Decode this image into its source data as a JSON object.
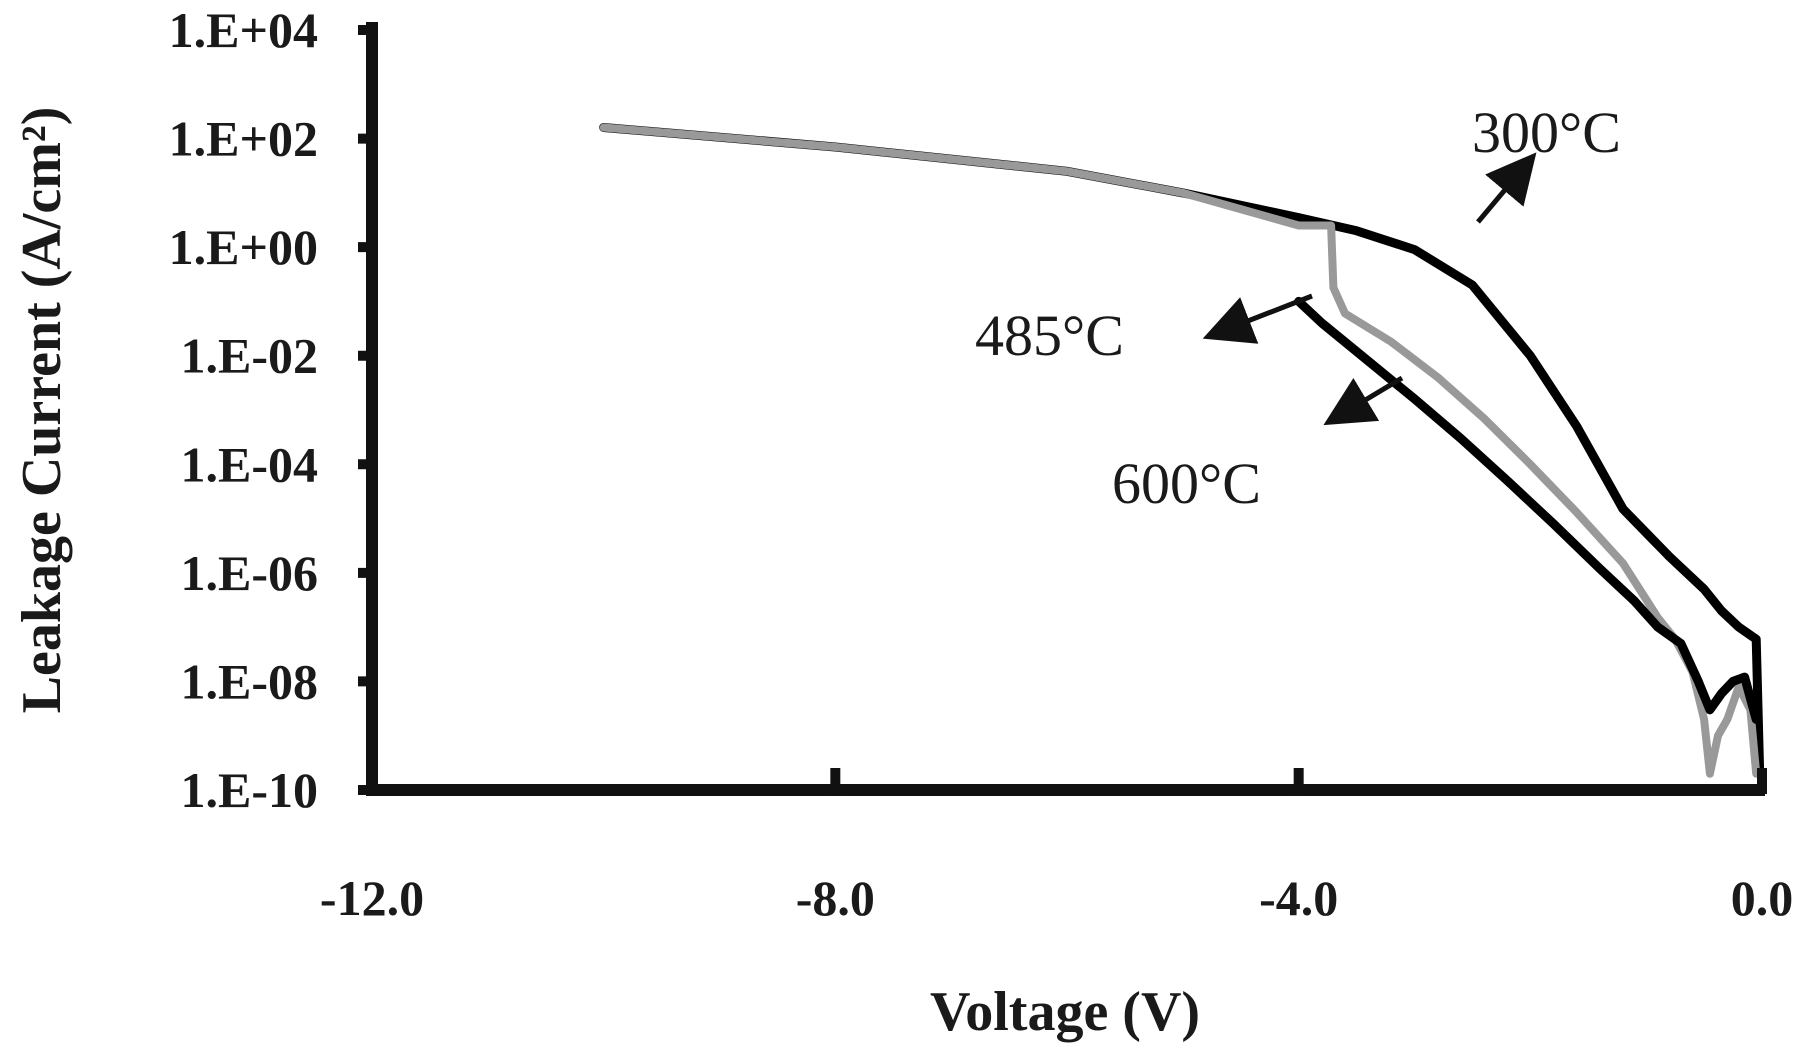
{
  "chart_data": {
    "type": "line",
    "title": "",
    "xlabel": "Voltage (V)",
    "ylabel": "Leakage Current (A/cm²)",
    "y_scale": "log",
    "xlim": [
      -12.0,
      0.0
    ],
    "ylim": [
      1e-10,
      10000.0
    ],
    "x_ticks": [
      {
        "value": -12.0,
        "label": "-12.0"
      },
      {
        "value": -8.0,
        "label": "-8.0"
      },
      {
        "value": -4.0,
        "label": "-4.0"
      },
      {
        "value": 0.0,
        "label": "0.0"
      }
    ],
    "y_ticks": [
      {
        "value": 10000.0,
        "label": "1.E+04"
      },
      {
        "value": 100.0,
        "label": "1.E+02"
      },
      {
        "value": 1.0,
        "label": "1.E+00"
      },
      {
        "value": 0.01,
        "label": "1.E-02"
      },
      {
        "value": 0.0001,
        "label": "1.E-04"
      },
      {
        "value": 1e-06,
        "label": "1.E-06"
      },
      {
        "value": 1e-08,
        "label": "1.E-08"
      },
      {
        "value": 1e-10,
        "label": "1.E-10"
      }
    ],
    "grid": false,
    "legend": "none",
    "series": [
      {
        "annotation": "300°C",
        "color": "#000000",
        "x": [
          -10.0,
          -8.0,
          -6.0,
          -5.0,
          -4.0,
          -3.5,
          -3.0,
          -2.5,
          -2.0,
          -1.6,
          -1.2,
          -0.8,
          -0.5,
          -0.35,
          -0.2,
          -0.05,
          -0.02
        ],
        "y": [
          160,
          70,
          25,
          10,
          3.5,
          2.0,
          0.9,
          0.2,
          0.01,
          0.0005,
          1.5e-05,
          2e-06,
          5e-07,
          2e-07,
          1e-07,
          6e-08,
          2e-10
        ]
      },
      {
        "annotation": "485°C",
        "color": "#999999",
        "x": [
          -10.0,
          -8.0,
          -6.0,
          -5.0,
          -4.0,
          -3.72,
          -3.7,
          -3.6,
          -3.2,
          -2.8,
          -2.4,
          -2.0,
          -1.6,
          -1.2,
          -0.9,
          -0.75,
          -0.6,
          -0.5,
          -0.45,
          -0.38,
          -0.3,
          -0.2,
          -0.1,
          -0.05
        ],
        "y": [
          160,
          70,
          25,
          10,
          2.5,
          2.5,
          0.18,
          0.06,
          0.018,
          0.004,
          0.0007,
          0.0001,
          1.3e-05,
          1.5e-06,
          1.5e-07,
          6e-08,
          1.5e-08,
          2e-09,
          2e-10,
          1e-09,
          2e-09,
          8e-09,
          3e-09,
          2e-10
        ]
      },
      {
        "annotation": "600°C",
        "color": "#000000",
        "x": [
          -4.0,
          -3.8,
          -3.4,
          -3.0,
          -2.6,
          -2.2,
          -1.8,
          -1.4,
          -1.1,
          -0.9,
          -0.7,
          -0.55,
          -0.45,
          -0.35,
          -0.25,
          -0.15,
          -0.05
        ],
        "y": [
          0.1,
          0.04,
          0.008,
          0.0016,
          0.0003,
          5e-05,
          8e-06,
          1.2e-06,
          3e-07,
          1e-07,
          5e-08,
          1e-08,
          3e-09,
          6e-09,
          1e-08,
          1.2e-08,
          2e-09
        ]
      }
    ],
    "annotations": [
      {
        "text": "300°C"
      },
      {
        "text": "485°C"
      },
      {
        "text": "600°C"
      }
    ]
  }
}
